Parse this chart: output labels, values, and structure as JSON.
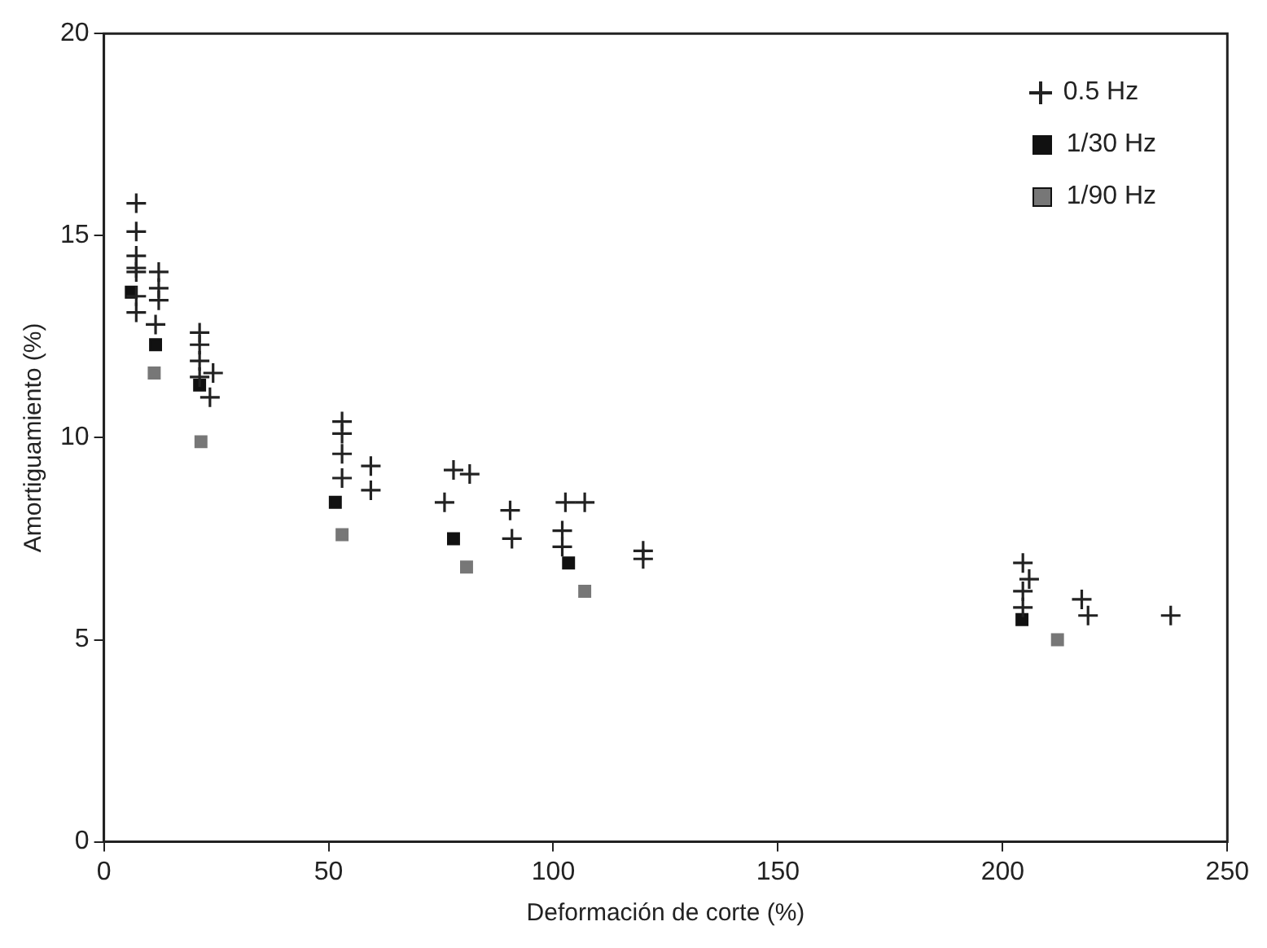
{
  "chart_data": {
    "type": "scatter",
    "xlabel": "Deformación de corte (%)",
    "ylabel": "Amortiguamiento (%)",
    "xlim": [
      0,
      250
    ],
    "xticks": [
      0,
      50,
      100,
      150,
      200,
      250
    ],
    "ylim": [
      0,
      20
    ],
    "yticks": [
      0,
      5,
      10,
      15,
      20
    ],
    "grid": false,
    "legend": "top right",
    "series": [
      {
        "name": "0.5 Hz",
        "color": "#222222",
        "marker": "cross",
        "x": [
          7.2,
          7.2,
          7.2,
          7.2,
          7.2,
          7.2,
          7.2,
          12.2,
          12.2,
          12.2,
          11.5,
          21.3,
          21.3,
          21.3,
          21.3,
          24.3,
          23.6,
          53,
          53,
          53,
          53,
          59.4,
          59.4,
          77.8,
          81.4,
          75.8,
          90.4,
          90.8,
          102.7,
          107,
          102,
          102,
          120,
          120,
          204.5,
          205.9,
          204.5,
          204.5,
          217.6,
          219,
          237.4
        ],
        "values": [
          15.8,
          15.1,
          14.5,
          14.2,
          14.1,
          13.5,
          13.1,
          14.1,
          13.7,
          13.4,
          12.8,
          12.6,
          12.3,
          11.9,
          11.5,
          11.6,
          11.0,
          10.4,
          10.1,
          9.6,
          9.0,
          9.3,
          8.7,
          9.2,
          9.1,
          8.4,
          8.2,
          7.5,
          8.4,
          8.4,
          7.7,
          7.3,
          7.2,
          7.0,
          6.9,
          6.5,
          6.2,
          5.8,
          6.0,
          5.6,
          5.6
        ]
      },
      {
        "name": "1/30 Hz",
        "color": "#111111",
        "marker": "square",
        "x": [
          6.1,
          11.5,
          21.3,
          51.5,
          77.8,
          103.4,
          204.3
        ],
        "values": [
          13.6,
          12.3,
          11.3,
          8.4,
          7.5,
          6.9,
          5.5
        ]
      },
      {
        "name": "1/90 Hz",
        "color": "#777777",
        "marker": "square",
        "x": [
          11.2,
          21.6,
          53,
          80.7,
          107,
          212.2
        ],
        "values": [
          11.6,
          9.9,
          7.6,
          6.8,
          6.2,
          5.0
        ]
      }
    ]
  }
}
